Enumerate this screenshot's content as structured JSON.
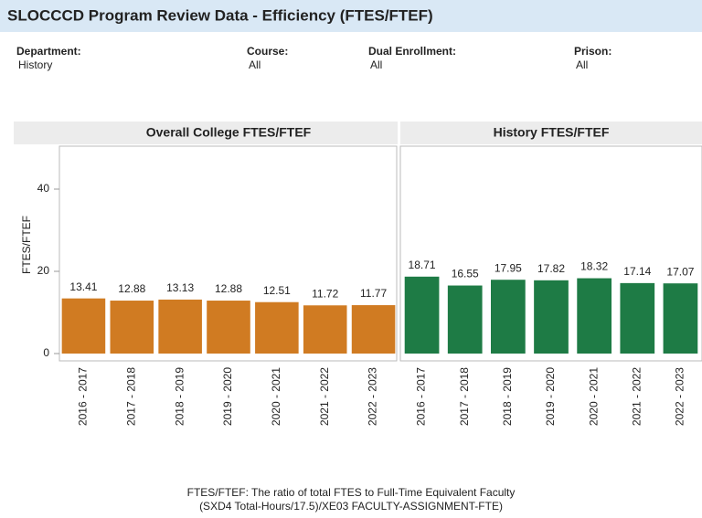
{
  "header": {
    "title": "SLOCCCD Program Review Data - Efficiency (FTES/FTEF)"
  },
  "filters": [
    {
      "label": "Department:",
      "value": "History"
    },
    {
      "label": "Course:",
      "value": "All"
    },
    {
      "label": "Dual Enrollment:",
      "value": "All"
    },
    {
      "label": "Prison:",
      "value": "All"
    }
  ],
  "chart_data": [
    {
      "type": "bar",
      "title": "Overall College FTES/FTEF",
      "y_label": "FTES/FTEF",
      "categories": [
        "2016 - 2017",
        "2017 - 2018",
        "2018 - 2019",
        "2019 - 2020",
        "2020 - 2021",
        "2021 - 2022",
        "2022 - 2023"
      ],
      "values": [
        13.41,
        12.88,
        13.13,
        12.88,
        12.51,
        11.72,
        11.77
      ],
      "color": "#d07b22",
      "ylim": [
        0,
        50
      ],
      "yticks": [
        0,
        20,
        40
      ]
    },
    {
      "type": "bar",
      "title": "History FTES/FTEF",
      "categories": [
        "2016 - 2017",
        "2017 - 2018",
        "2018 - 2019",
        "2019 - 2020",
        "2020 - 2021",
        "2021 - 2022",
        "2022 - 2023"
      ],
      "values": [
        18.71,
        16.55,
        17.95,
        17.82,
        18.32,
        17.14,
        17.07
      ],
      "color": "#1e7b45",
      "ylim": [
        0,
        50
      ]
    }
  ],
  "footnote": [
    "FTES/FTEF: The ratio of total FTES to Full-Time Equivalent Faculty",
    "(SXD4 Total-Hours/17.5)/XE03 FACULTY-ASSIGNMENT-FTE)"
  ]
}
